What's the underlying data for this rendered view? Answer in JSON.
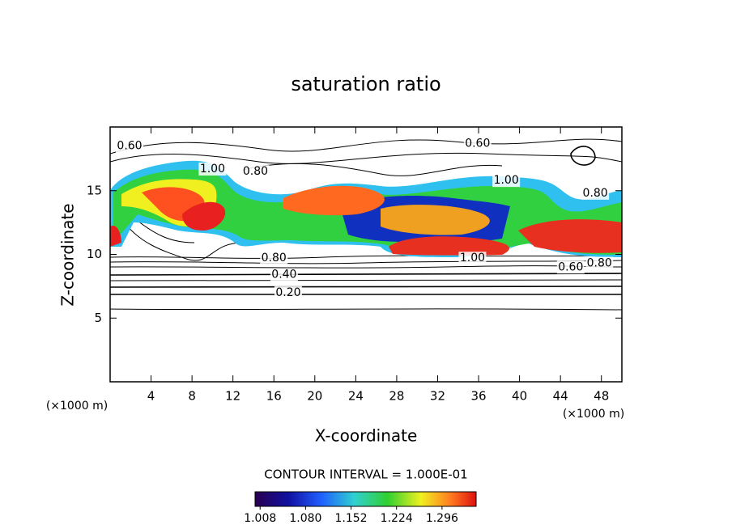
{
  "chart_data": {
    "type": "contour",
    "title": "saturation ratio",
    "xlabel": "X-coordinate",
    "ylabel": "Z-coordinate",
    "x_unit_left": "(×1000 m)",
    "x_unit_right": "(×1000 m)",
    "xlim": [
      0,
      50
    ],
    "ylim": [
      0,
      20
    ],
    "xticks": [
      4,
      8,
      12,
      16,
      20,
      24,
      28,
      32,
      36,
      40,
      44,
      48
    ],
    "yticks": [
      5,
      10,
      15
    ],
    "contour_labels": [
      {
        "label": "0.60",
        "x": 1.9,
        "y": 18.5
      },
      {
        "label": "1.00",
        "x": 10,
        "y": 16.7
      },
      {
        "label": "0.80",
        "x": 14.2,
        "y": 16.5
      },
      {
        "label": "0.60",
        "x": 35.9,
        "y": 18.7
      },
      {
        "label": "1.00",
        "x": 38.7,
        "y": 15.8
      },
      {
        "label": "0.80",
        "x": 47.4,
        "y": 14.8
      },
      {
        "label": "1.00",
        "x": 35.4,
        "y": 9.7
      },
      {
        "label": "0.80",
        "x": 16,
        "y": 9.7
      },
      {
        "label": "0.40",
        "x": 17,
        "y": 8.4
      },
      {
        "label": "0.20",
        "x": 17.4,
        "y": 7
      },
      {
        "label": "0.60",
        "x": 45,
        "y": 9
      },
      {
        "label": "0.80",
        "x": 47.8,
        "y": 9.3
      }
    ],
    "contour_interval": "CONTOUR INTERVAL = 1.000E-01",
    "clim": [
      1.0,
      1.35
    ],
    "colorbar_ticks": [
      {
        "value": 1.008,
        "label": "1.008"
      },
      {
        "value": 1.08,
        "label": "1.080"
      },
      {
        "value": 1.152,
        "label": "1.152"
      },
      {
        "value": 1.224,
        "label": "1.224"
      },
      {
        "value": 1.296,
        "label": "1.296"
      }
    ]
  }
}
